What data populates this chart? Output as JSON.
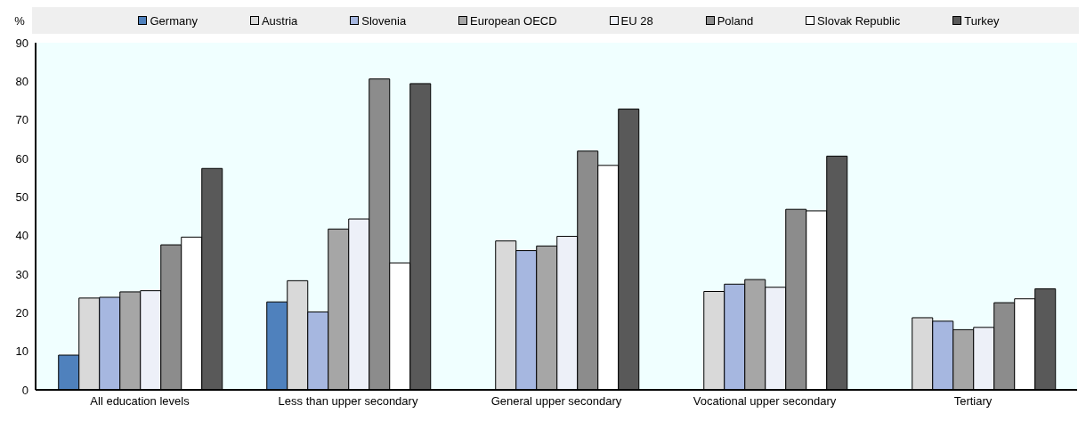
{
  "chart_data": {
    "type": "bar",
    "ylabel": "%",
    "categories": [
      "All education levels",
      "Less than upper secondary",
      "General upper secondary",
      "Vocational upper secondary",
      "Tertiary"
    ],
    "series": [
      {
        "name": "Germany",
        "color": "#4f81bd",
        "values": [
          9,
          22.8,
          null,
          null,
          null
        ]
      },
      {
        "name": "Austria",
        "color": "#d9d9d9",
        "values": [
          23.8,
          28.3,
          38.6,
          25.5,
          18.7
        ]
      },
      {
        "name": "Slovenia",
        "color": "#a6b7e0",
        "values": [
          24,
          20.2,
          36.1,
          27.4,
          17.8
        ]
      },
      {
        "name": "European OECD",
        "color": "#a6a6a6",
        "values": [
          25.4,
          41.7,
          37.3,
          28.6,
          15.6
        ]
      },
      {
        "name": "EU 28",
        "color": "#edf0f8",
        "values": [
          25.7,
          44.3,
          39.8,
          26.6,
          16.2
        ]
      },
      {
        "name": "Poland",
        "color": "#8c8c8c",
        "values": [
          37.6,
          80.6,
          61.9,
          46.8,
          22.6
        ]
      },
      {
        "name": "Slovak Republic",
        "color": "#ffffff",
        "values": [
          39.6,
          32.9,
          58.2,
          46.4,
          23.6
        ]
      },
      {
        "name": "Turkey",
        "color": "#595959",
        "values": [
          57.4,
          79.4,
          72.8,
          60.6,
          26.2
        ]
      }
    ],
    "ylim": [
      0,
      90
    ],
    "yticks": [
      0,
      10,
      20,
      30,
      40,
      50,
      60,
      70,
      80,
      90
    ],
    "legend": "top"
  }
}
